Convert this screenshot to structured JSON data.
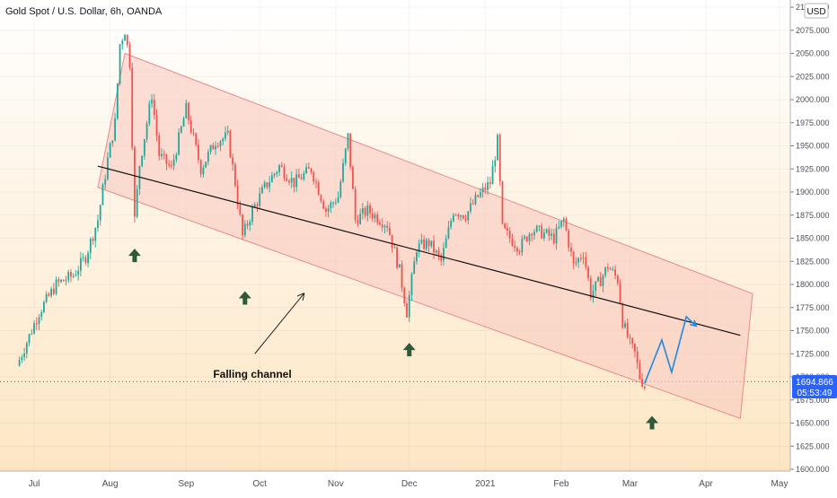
{
  "title": "Gold Spot / U.S. Dollar, 6h, OANDA",
  "currency_button": "USD",
  "price_label": "1694.866",
  "countdown_label": "05:53:49",
  "colors": {
    "bg_top": "#ffffff",
    "bg_bottom": "#fde6c4",
    "up": "#26a69a",
    "down": "#ef5350",
    "channel_fill": "#f8c9bf",
    "channel_stroke": "#e88b8b",
    "arrow_up": "#2e5a3a",
    "forecast": "#1e88e5",
    "price_box": "#2962ff"
  },
  "chart_data": {
    "type": "candlestick",
    "title": "Gold Spot / U.S. Dollar, 6h, OANDA",
    "y_axis": {
      "min": 1600,
      "max": 2100,
      "ticks": [
        "1600.000",
        "1625.000",
        "1650.000",
        "1675.000",
        "1700.000",
        "1725.000",
        "1750.000",
        "1775.000",
        "1800.000",
        "1825.000",
        "1850.000",
        "1875.000",
        "1900.000",
        "1925.000",
        "1950.000",
        "1975.000",
        "2000.000",
        "2025.000",
        "2050.000",
        "2075.000",
        "2100.000"
      ]
    },
    "x_axis": {
      "labels": [
        "Jul",
        "Aug",
        "Sep",
        "Oct",
        "Nov",
        "Dec",
        "2021",
        "Feb",
        "Mar",
        "Apr",
        "May"
      ]
    },
    "current_price": 1694.866,
    "price_path": [
      [
        "Jun 24",
        1712
      ],
      [
        "Jul 3",
        1770
      ],
      [
        "Jul 10",
        1800
      ],
      [
        "Jul 17",
        1810
      ],
      [
        "Jul 22",
        1830
      ],
      [
        "Jul 27",
        1870
      ],
      [
        "Jul 31",
        1935
      ],
      [
        "Aug 3",
        1975
      ],
      [
        "Aug 5",
        2060
      ],
      [
        "Aug 7",
        2075
      ],
      [
        "Aug 9",
        2040
      ],
      [
        "Aug 11",
        1870
      ],
      [
        "Aug 13",
        1930
      ],
      [
        "Aug 18",
        2005
      ],
      [
        "Aug 21",
        1940
      ],
      [
        "Aug 26",
        1925
      ],
      [
        "Sep 1",
        1990
      ],
      [
        "Sep 7",
        1925
      ],
      [
        "Sep 13",
        1955
      ],
      [
        "Sep 18",
        1960
      ],
      [
        "Sep 21",
        1910
      ],
      [
        "Sep 24",
        1852
      ],
      [
        "Sep 28",
        1880
      ],
      [
        "Oct 3",
        1905
      ],
      [
        "Oct 9",
        1928
      ],
      [
        "Oct 15",
        1910
      ],
      [
        "Oct 22",
        1925
      ],
      [
        "Oct 28",
        1880
      ],
      [
        "Nov 2",
        1895
      ],
      [
        "Nov 6",
        1960
      ],
      [
        "Nov 9",
        1870
      ],
      [
        "Nov 14",
        1880
      ],
      [
        "Nov 22",
        1865
      ],
      [
        "Nov 27",
        1815
      ],
      [
        "Nov 30",
        1770
      ],
      [
        "Dec 4",
        1840
      ],
      [
        "Dec 9",
        1845
      ],
      [
        "Dec 14",
        1825
      ],
      [
        "Dec 19",
        1880
      ],
      [
        "Dec 24",
        1875
      ],
      [
        "Dec 29",
        1895
      ],
      [
        "Jan 3",
        1910
      ],
      [
        "Jan 6",
        1955
      ],
      [
        "Jan 8",
        1860
      ],
      [
        "Jan 11",
        1850
      ],
      [
        "Jan 15",
        1840
      ],
      [
        "Jan 20",
        1860
      ],
      [
        "Jan 25",
        1855
      ],
      [
        "Jan 29",
        1850
      ],
      [
        "Feb 2",
        1870
      ],
      [
        "Feb 6",
        1820
      ],
      [
        "Feb 10",
        1835
      ],
      [
        "Feb 13",
        1790
      ],
      [
        "Feb 17",
        1805
      ],
      [
        "Feb 20",
        1820
      ],
      [
        "Feb 24",
        1805
      ],
      [
        "Feb 26",
        1760
      ],
      [
        "Mar 1",
        1735
      ],
      [
        "Mar 3",
        1725
      ],
      [
        "Mar 5",
        1700
      ],
      [
        "Mar 7",
        1690
      ]
    ],
    "channel": {
      "upper": [
        [
          "Aug 7",
          2050
        ],
        [
          "Apr 20",
          1790
        ]
      ],
      "lower": [
        [
          "Jul 27",
          1905
        ],
        [
          "Apr 15",
          1655
        ]
      ],
      "midline": [
        [
          "Jul 27",
          1928
        ],
        [
          "Apr 15",
          1745
        ]
      ]
    },
    "forecast_path": [
      [
        "Mar 7",
        1693
      ],
      [
        "Mar 14",
        1740
      ],
      [
        "Mar 18",
        1705
      ],
      [
        "Mar 24",
        1765
      ],
      [
        "Mar 28",
        1755
      ]
    ],
    "annotations": [
      {
        "text": "Falling channel",
        "x": "Sep 28",
        "y": 1699
      }
    ],
    "support_arrows": [
      {
        "x": "Aug 11",
        "y": 1831
      },
      {
        "x": "Sep 25",
        "y": 1785
      },
      {
        "x": "Dec 1",
        "y": 1729
      },
      {
        "x": "Mar 10",
        "y": 1650
      }
    ],
    "momentum_arrow": [
      [
        "Sep 29",
        1725
      ],
      [
        "Oct 19",
        1790
      ]
    ]
  }
}
